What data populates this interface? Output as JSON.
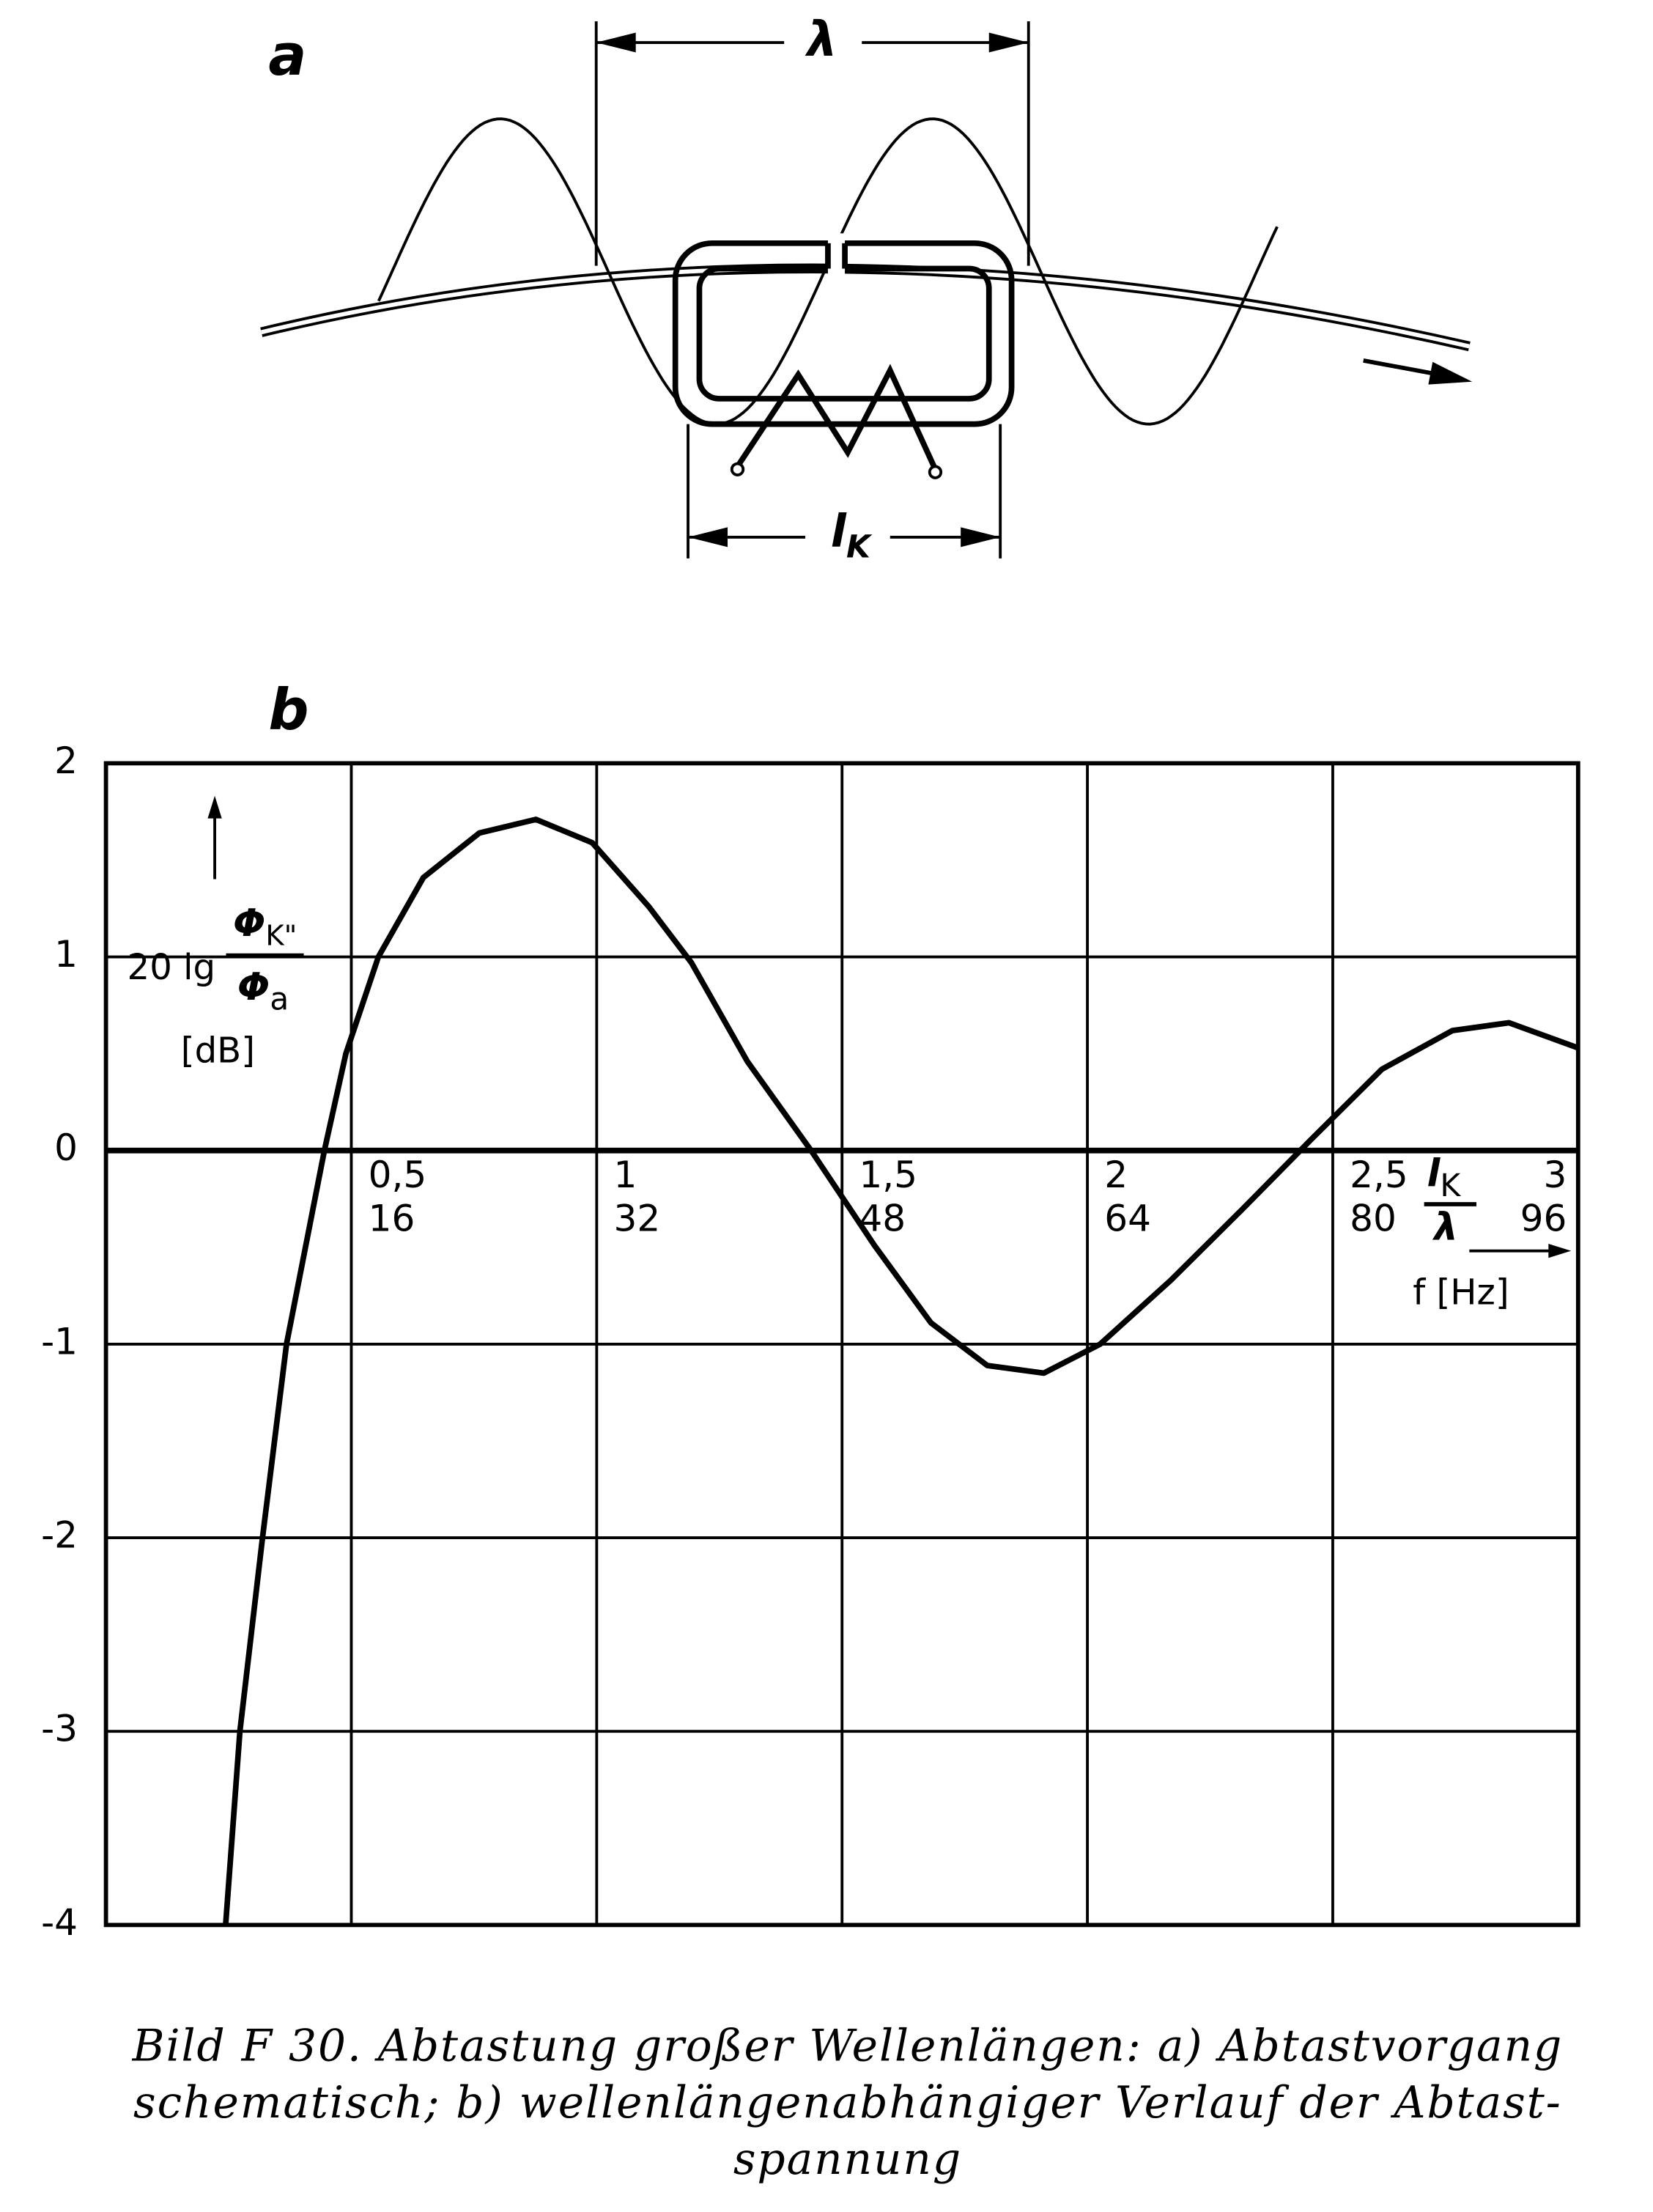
{
  "diagram": {
    "label": "a",
    "wavelength_label": "λ",
    "length_label": [
      "l",
      "K"
    ]
  },
  "chart_data": {
    "type": "line",
    "panel_label": "b",
    "y_label": {
      "prefix": "20 lg",
      "numerator": [
        "Φ",
        "K\""
      ],
      "denominator": [
        "Φ",
        "a"
      ],
      "unit": "[dB]"
    },
    "x_label": {
      "numerator": [
        "l",
        "K"
      ],
      "denominator": "λ"
    },
    "x2_label": "f [Hz]",
    "x": [
      0.244,
      0.273,
      0.319,
      0.368,
      0.445,
      0.489,
      0.555,
      0.647,
      0.761,
      0.876,
      0.991,
      1.106,
      1.193,
      1.307,
      1.437,
      1.566,
      1.681,
      1.796,
      1.911,
      2.026,
      2.17,
      2.313,
      2.457,
      2.6,
      2.744,
      2.859,
      3.0
    ],
    "series": [
      {
        "color": "#000000",
        "values": [
          -4,
          -3,
          -2,
          -1,
          0,
          0.5,
          1,
          1.41,
          1.64,
          1.71,
          1.59,
          1.26,
          0.97,
          0.46,
          0,
          -0.49,
          -0.89,
          -1.11,
          -1.15,
          -1.0,
          -0.67,
          -0.31,
          0.06,
          0.42,
          0.62,
          0.66,
          0.53
        ]
      }
    ],
    "xlim": [
      0,
      3
    ],
    "xticks": [
      {
        "value": 0.5,
        "label": "0,5"
      },
      1,
      {
        "value": 1.5,
        "label": "1,5"
      },
      2,
      {
        "value": 2.5,
        "label": "2,5"
      },
      3
    ],
    "x2lim": [
      0,
      96
    ],
    "x2ticks": [
      16,
      32,
      48,
      64,
      80,
      96
    ],
    "ylim": [
      -4,
      2
    ],
    "yticks": [
      -4,
      -3,
      -2,
      -1,
      0,
      1,
      2
    ],
    "grid": true
  },
  "caption": [
    "Bild F 30.  Abtastung großer Wellenlängen: a) Abtastvorgang",
    "schematisch; b) wellenlängenabhängiger Verlauf der Abtast-",
    "spannung"
  ]
}
